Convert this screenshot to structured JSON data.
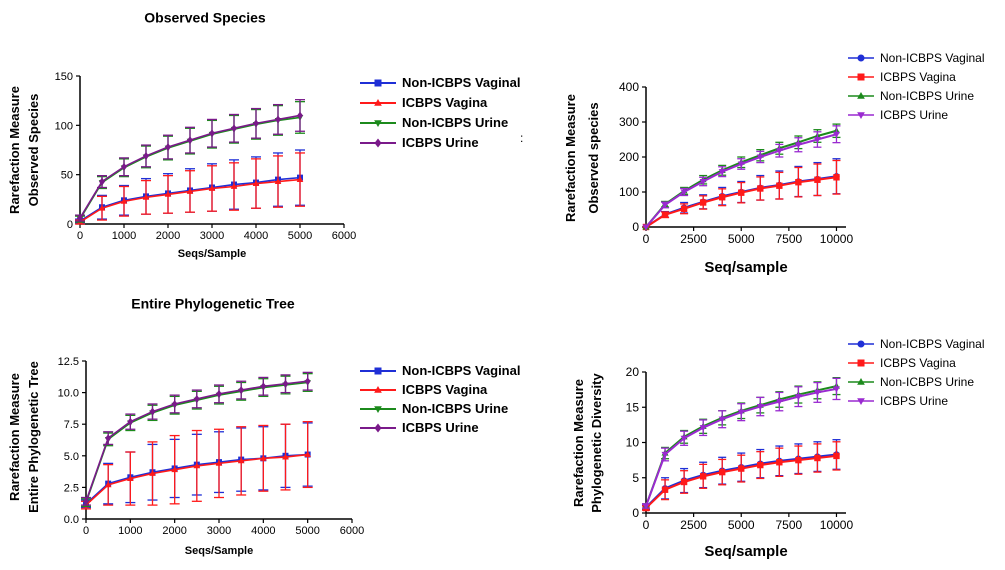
{
  "extra_mark": ":",
  "chart_data": [
    {
      "type": "line",
      "title": "Observed Species",
      "xlabel": "Seqs/Sample",
      "ylabel": [
        "Rarefaction Measure",
        "Observed Species"
      ],
      "xlim": [
        0,
        6000
      ],
      "ylim": [
        0,
        150
      ],
      "xticks": [
        "0",
        "1000",
        "2000",
        "3000",
        "4000",
        "5000",
        "6000"
      ],
      "yticks": [
        "0",
        "50",
        "100",
        "150"
      ],
      "legend": [
        "Non-ICBPS Vaginal",
        "ICBPS Vagina",
        "Non-ICBPS Urine",
        "ICBPS Urine"
      ],
      "x": [
        0,
        500,
        1000,
        1500,
        2000,
        2500,
        3000,
        3500,
        4000,
        4500,
        5000
      ],
      "series": [
        {
          "name": "Non-ICBPS Vaginal",
          "color": "#1f2fd6",
          "marker": "square",
          "values": [
            3,
            17,
            24,
            28,
            31,
            34,
            37,
            40,
            42,
            45,
            47
          ],
          "errors": [
            2,
            12,
            15,
            18,
            20,
            22,
            24,
            25,
            26,
            27,
            28
          ]
        },
        {
          "name": "ICBPS Vagina",
          "color": "#ff1a1a",
          "marker": "triangle-up",
          "values": [
            2,
            16,
            23,
            27,
            30,
            33,
            36,
            38,
            41,
            43,
            45
          ],
          "errors": [
            2,
            12,
            15,
            17,
            19,
            21,
            23,
            24,
            25,
            26,
            27
          ]
        },
        {
          "name": "Non-ICBPS Urine",
          "color": "#1c8a1c",
          "marker": "triangle-down",
          "values": [
            5,
            42,
            57,
            68,
            77,
            84,
            91,
            96,
            101,
            105,
            108
          ],
          "errors": [
            3,
            6,
            9,
            11,
            12,
            13,
            14,
            14,
            15,
            15,
            16
          ]
        },
        {
          "name": "ICBPS Urine",
          "color": "#7a1a8a",
          "marker": "diamond",
          "values": [
            6,
            43,
            58,
            69,
            78,
            85,
            92,
            97,
            102,
            106,
            110
          ],
          "errors": [
            3,
            6,
            9,
            11,
            12,
            13,
            14,
            14,
            15,
            15,
            16
          ]
        }
      ]
    },
    {
      "type": "line",
      "title": "",
      "xlabel": "Seq/sample",
      "ylabel": [
        "Rarefaction Measure",
        "Observed species"
      ],
      "xlim": [
        0,
        10500
      ],
      "ylim": [
        0,
        400
      ],
      "xticks": [
        "0",
        "2500",
        "5000",
        "7500",
        "10000"
      ],
      "yticks": [
        "0",
        "100",
        "200",
        "300",
        "400"
      ],
      "legend": [
        "Non-ICBPS Vaginal",
        "ICBPS Vagina",
        "Non-ICBPS Urine",
        "ICBPS Urine"
      ],
      "x": [
        0,
        1000,
        2000,
        3000,
        4000,
        5000,
        6000,
        7000,
        8000,
        9000,
        10000
      ],
      "series": [
        {
          "name": "Non-ICBPS Vaginal",
          "color": "#1f2fd6",
          "marker": "circle",
          "values": [
            0,
            36,
            55,
            72,
            88,
            100,
            112,
            120,
            130,
            137,
            145
          ],
          "errors": [
            0,
            8,
            15,
            20,
            25,
            30,
            35,
            40,
            43,
            47,
            50
          ]
        },
        {
          "name": "ICBPS Vagina",
          "color": "#ff1a1a",
          "marker": "square",
          "values": [
            0,
            35,
            52,
            70,
            85,
            98,
            110,
            118,
            128,
            135,
            142
          ],
          "errors": [
            0,
            8,
            14,
            19,
            24,
            29,
            33,
            38,
            42,
            45,
            48
          ]
        },
        {
          "name": "Non-ICBPS Urine",
          "color": "#1c8a1c",
          "marker": "triangle-up",
          "values": [
            0,
            65,
            103,
            135,
            162,
            185,
            205,
            225,
            242,
            260,
            275
          ],
          "errors": [
            0,
            8,
            10,
            12,
            14,
            15,
            16,
            17,
            18,
            18,
            19
          ]
        },
        {
          "name": "ICBPS Urine",
          "color": "#9a2ad0",
          "marker": "triangle-down",
          "values": [
            0,
            63,
            100,
            130,
            158,
            180,
            200,
            218,
            235,
            250,
            265
          ],
          "errors": [
            0,
            8,
            10,
            12,
            14,
            15,
            16,
            18,
            20,
            22,
            24
          ]
        }
      ]
    },
    {
      "type": "line",
      "title": "Entire Phylogenetic Tree",
      "xlabel": "Seqs/Sample",
      "ylabel": [
        "Rarefaction Measure",
        "Entire Phylogenetic Tree"
      ],
      "xlim": [
        0,
        6000
      ],
      "ylim": [
        0,
        12.5
      ],
      "xticks": [
        "0",
        "1000",
        "2000",
        "3000",
        "4000",
        "5000",
        "6000"
      ],
      "yticks": [
        "0.0",
        "2.5",
        "5.0",
        "7.5",
        "10.0",
        "12.5"
      ],
      "legend": [
        "Non-ICBPS Vaginal",
        "ICBPS Vagina",
        "Non-ICBPS Urine",
        "ICBPS Urine"
      ],
      "x": [
        0,
        500,
        1000,
        1500,
        2000,
        2500,
        3000,
        3500,
        4000,
        4500,
        5000
      ],
      "series": [
        {
          "name": "Non-ICBPS Vaginal",
          "color": "#1f2fd6",
          "marker": "square",
          "values": [
            1.2,
            2.8,
            3.3,
            3.7,
            4.0,
            4.3,
            4.5,
            4.7,
            4.8,
            5.0,
            5.1
          ],
          "errors": [
            0.3,
            1.6,
            2.0,
            2.2,
            2.3,
            2.4,
            2.4,
            2.5,
            2.5,
            2.5,
            2.5
          ]
        },
        {
          "name": "ICBPS Vagina",
          "color": "#ff1a1a",
          "marker": "triangle-up",
          "values": [
            1.1,
            2.7,
            3.2,
            3.6,
            3.9,
            4.2,
            4.4,
            4.6,
            4.8,
            4.9,
            5.1
          ],
          "errors": [
            0.3,
            1.6,
            2.1,
            2.5,
            2.7,
            2.8,
            2.7,
            2.7,
            2.6,
            2.6,
            2.6
          ]
        },
        {
          "name": "Non-ICBPS Urine",
          "color": "#1c8a1c",
          "marker": "triangle-down",
          "values": [
            1.3,
            6.3,
            7.6,
            8.4,
            9.0,
            9.4,
            9.8,
            10.1,
            10.4,
            10.6,
            10.8
          ],
          "errors": [
            0.3,
            0.5,
            0.6,
            0.6,
            0.7,
            0.7,
            0.7,
            0.7,
            0.7,
            0.7,
            0.7
          ]
        },
        {
          "name": "ICBPS Urine",
          "color": "#7a1a8a",
          "marker": "diamond",
          "values": [
            1.4,
            6.4,
            7.7,
            8.5,
            9.1,
            9.5,
            9.9,
            10.2,
            10.5,
            10.7,
            10.9
          ],
          "errors": [
            0.3,
            0.5,
            0.6,
            0.6,
            0.7,
            0.7,
            0.7,
            0.7,
            0.7,
            0.7,
            0.7
          ]
        }
      ]
    },
    {
      "type": "line",
      "title": "",
      "xlabel": "Seq/sample",
      "ylabel": [
        "Rarefaction Measure",
        "Phylogenetic Diversity"
      ],
      "xlim": [
        0,
        10500
      ],
      "ylim": [
        0,
        20
      ],
      "xticks": [
        "0",
        "2500",
        "5000",
        "7500",
        "10000"
      ],
      "yticks": [
        "0",
        "5",
        "10",
        "15",
        "20"
      ],
      "legend": [
        "Non-ICBPS Vaginal",
        "ICBPS Vagina",
        "Non-ICBPS Urine",
        "ICBPS Urine"
      ],
      "x": [
        0,
        1000,
        2000,
        3000,
        4000,
        5000,
        6000,
        7000,
        8000,
        9000,
        10000
      ],
      "series": [
        {
          "name": "Non-ICBPS Vaginal",
          "color": "#1f2fd6",
          "marker": "circle",
          "values": [
            0.8,
            3.5,
            4.6,
            5.4,
            6.0,
            6.5,
            7.0,
            7.4,
            7.7,
            8.0,
            8.3
          ],
          "errors": [
            0.3,
            1.5,
            1.7,
            1.8,
            1.9,
            2.0,
            2.0,
            2.1,
            2.1,
            2.1,
            2.1
          ]
        },
        {
          "name": "ICBPS Vagina",
          "color": "#ff1a1a",
          "marker": "square",
          "values": [
            0.7,
            3.3,
            4.4,
            5.2,
            5.8,
            6.3,
            6.8,
            7.2,
            7.5,
            7.8,
            8.1
          ],
          "errors": [
            0.3,
            1.4,
            1.6,
            1.7,
            1.8,
            1.9,
            1.9,
            2.0,
            2.0,
            2.0,
            2.0
          ]
        },
        {
          "name": "Non-ICBPS Urine",
          "color": "#1c8a1c",
          "marker": "triangle-up",
          "values": [
            1.0,
            8.5,
            10.8,
            12.3,
            13.5,
            14.5,
            15.3,
            16.1,
            16.8,
            17.4,
            18.0
          ],
          "errors": [
            0.3,
            0.8,
            0.9,
            1.0,
            1.0,
            1.1,
            1.1,
            1.1,
            1.2,
            1.2,
            1.2
          ]
        },
        {
          "name": "ICBPS Urine",
          "color": "#9a2ad0",
          "marker": "triangle-down",
          "values": [
            1.0,
            8.3,
            10.6,
            12.1,
            13.3,
            14.3,
            15.1,
            15.8,
            16.5,
            17.1,
            17.6
          ],
          "errors": [
            0.3,
            0.9,
            1.0,
            1.1,
            1.2,
            1.2,
            1.3,
            1.3,
            1.4,
            1.4,
            1.5
          ]
        }
      ]
    }
  ]
}
